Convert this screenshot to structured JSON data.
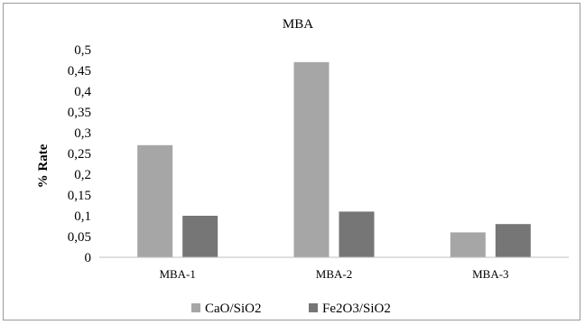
{
  "chart_data": {
    "type": "bar",
    "title": "MBA",
    "xlabel": "",
    "ylabel": "% Rate",
    "categories": [
      "MBA-1",
      "MBA-2",
      "MBA-3"
    ],
    "series": [
      {
        "name": "CaO/SiO2",
        "values": [
          0.27,
          0.47,
          0.06
        ],
        "color": "#a6a6a6"
      },
      {
        "name": "Fe2O3/SiO2",
        "values": [
          0.1,
          0.11,
          0.08
        ],
        "color": "#767676"
      }
    ],
    "ylim": [
      0,
      0.5
    ],
    "yticks": [
      "0",
      "0,05",
      "0,1",
      "0,15",
      "0,2",
      "0,25",
      "0,3",
      "0,35",
      "0,4",
      "0,45",
      "0,5"
    ],
    "ytick_values": [
      0,
      0.05,
      0.1,
      0.15,
      0.2,
      0.25,
      0.3,
      0.35,
      0.4,
      0.45,
      0.5
    ],
    "grid": false,
    "legend_position": "bottom"
  }
}
